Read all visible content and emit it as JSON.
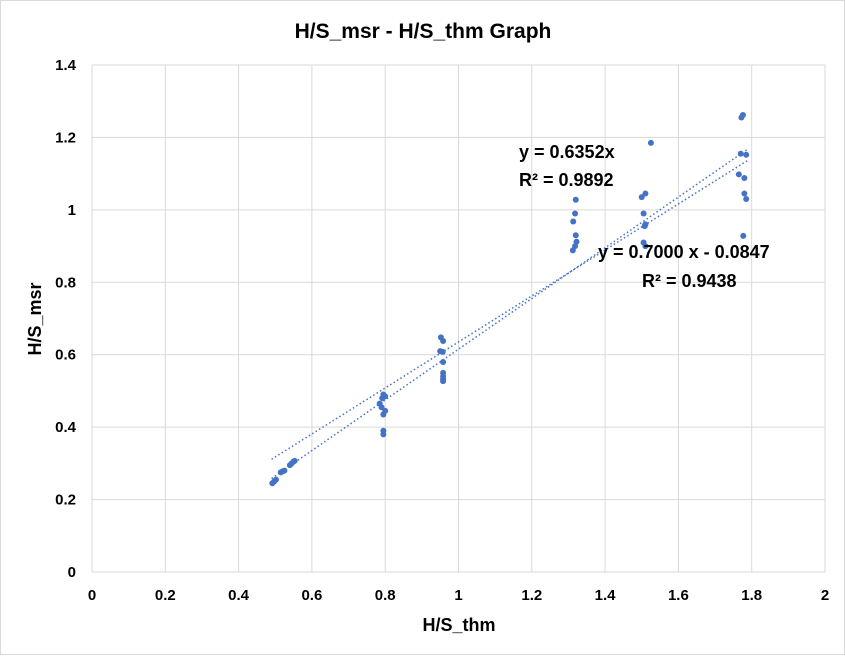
{
  "chart_data": {
    "type": "scatter",
    "title": "H/S_msr - H/S_thm Graph",
    "xlabel": "H/S_thm",
    "ylabel": "H/S_msr",
    "xlim": [
      0,
      2
    ],
    "ylim": [
      0,
      1.4
    ],
    "x_ticks": [
      "0",
      "0.2",
      "0.4",
      "0.6",
      "0.8",
      "1",
      "1.2",
      "1.4",
      "1.6",
      "1.8",
      "2"
    ],
    "y_ticks": [
      "0",
      "0.2",
      "0.4",
      "0.6",
      "0.8",
      "1",
      "1.2",
      "1.4"
    ],
    "grid": true,
    "marker_color": "#4472c4",
    "trendline_color": "#4472c4",
    "points": [
      [
        0.492,
        0.245
      ],
      [
        0.497,
        0.25
      ],
      [
        0.502,
        0.255
      ],
      [
        0.515,
        0.275
      ],
      [
        0.52,
        0.278
      ],
      [
        0.525,
        0.28
      ],
      [
        0.54,
        0.295
      ],
      [
        0.545,
        0.3
      ],
      [
        0.55,
        0.305
      ],
      [
        0.553,
        0.307
      ],
      [
        0.785,
        0.465
      ],
      [
        0.79,
        0.455
      ],
      [
        0.792,
        0.48
      ],
      [
        0.795,
        0.49
      ],
      [
        0.795,
        0.435
      ],
      [
        0.8,
        0.445
      ],
      [
        0.8,
        0.485
      ],
      [
        0.795,
        0.39
      ],
      [
        0.795,
        0.38
      ],
      [
        0.952,
        0.648
      ],
      [
        0.958,
        0.638
      ],
      [
        0.95,
        0.61
      ],
      [
        0.957,
        0.608
      ],
      [
        0.958,
        0.58
      ],
      [
        0.958,
        0.55
      ],
      [
        0.958,
        0.54
      ],
      [
        0.958,
        0.532
      ],
      [
        0.958,
        0.527
      ],
      [
        1.312,
        0.888
      ],
      [
        1.318,
        0.9
      ],
      [
        1.322,
        0.912
      ],
      [
        1.32,
        0.93
      ],
      [
        1.313,
        0.968
      ],
      [
        1.318,
        0.99
      ],
      [
        1.32,
        1.028
      ],
      [
        1.5,
        1.035
      ],
      [
        1.505,
        0.99
      ],
      [
        1.51,
        1.045
      ],
      [
        1.51,
        0.96
      ],
      [
        1.508,
        0.955
      ],
      [
        1.505,
        0.91
      ],
      [
        1.51,
        0.9
      ],
      [
        1.525,
        1.185
      ],
      [
        1.77,
        1.155
      ],
      [
        1.772,
        1.255
      ],
      [
        1.776,
        1.262
      ],
      [
        1.765,
        1.098
      ],
      [
        1.785,
        1.152
      ],
      [
        1.78,
        1.088
      ],
      [
        1.78,
        1.045
      ],
      [
        1.785,
        1.03
      ],
      [
        1.777,
        0.928
      ]
    ],
    "trendlines": [
      {
        "equation": "y = 0.6352x",
        "r2": "R² = 0.9892",
        "slope": 0.6352,
        "intercept": 0,
        "x_range": [
          0.49,
          1.79
        ]
      },
      {
        "equation": "y = 0.7000 x - 0.0847",
        "r2": "R² = 0.9438",
        "slope": 0.7,
        "intercept": -0.0847,
        "x_range": [
          0.49,
          1.79
        ]
      }
    ]
  }
}
